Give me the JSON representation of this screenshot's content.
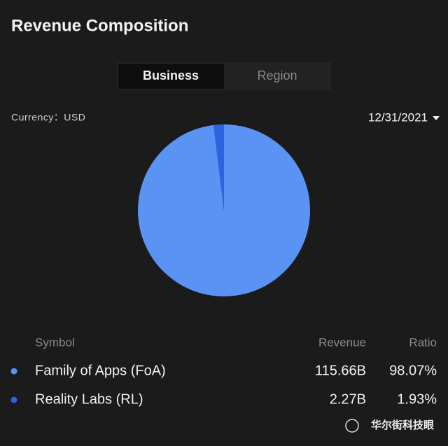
{
  "header": {
    "title": "Revenue Composition"
  },
  "tabs": [
    "Business",
    "Region"
  ],
  "currency": "Currency：USD",
  "date": "12/31/2021",
  "chart_data": {
    "type": "pie",
    "categories": [
      "Family of Apps (FoA)",
      "Reality Labs (RL)"
    ],
    "values": [
      98.07,
      1.93
    ],
    "value_labels": [
      "98.07%",
      "1.93%"
    ],
    "colors": [
      "#5b93f5",
      "#2b63e3"
    ]
  },
  "table": {
    "headers": [
      "Symbol",
      "Revenue",
      "Ratio"
    ],
    "revenue": [
      "115.66B",
      "2.27B"
    ]
  },
  "watermark": "华尔街科技眼"
}
